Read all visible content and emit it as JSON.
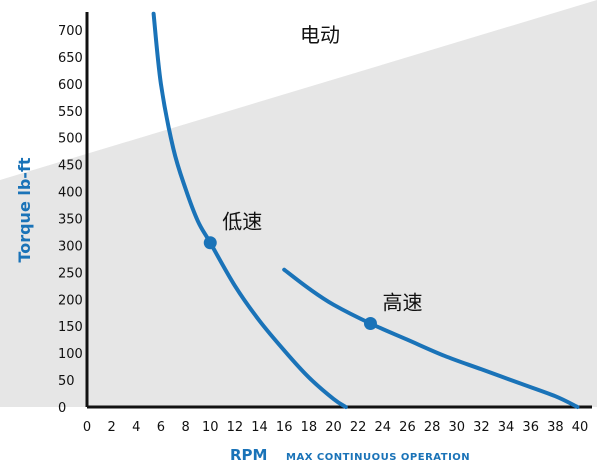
{
  "chart_data": {
    "type": "line",
    "xlabel": "RPM",
    "xlabel_sub": "MAX CONTINUOUS OPERATION",
    "ylabel": "Torque lb-ft",
    "xlim": [
      0,
      40
    ],
    "ylim": [
      0,
      700
    ],
    "x_ticks": [
      0,
      2,
      4,
      6,
      8,
      10,
      12,
      14,
      16,
      18,
      20,
      22,
      24,
      26,
      28,
      30,
      32,
      34,
      36,
      38,
      40
    ],
    "y_ticks": [
      0,
      50,
      100,
      150,
      200,
      250,
      300,
      350,
      400,
      450,
      500,
      550,
      600,
      650,
      700
    ],
    "grid": false,
    "region_label": "电动",
    "series": [
      {
        "name": "低速",
        "x": [
          5.4,
          6,
          7,
          8,
          9,
          10,
          12,
          14,
          16,
          18,
          20,
          21
        ],
        "y": [
          730,
          600,
          480,
          405,
          345,
          305,
          225,
          160,
          105,
          55,
          15,
          0
        ],
        "marker": {
          "x": 10,
          "y": 305
        },
        "color": "#1a73b8"
      },
      {
        "name": "高速",
        "x": [
          16,
          18,
          20,
          23,
          26,
          29,
          32,
          35,
          38,
          39.8
        ],
        "y": [
          255,
          220,
          190,
          155,
          125,
          95,
          70,
          45,
          20,
          0
        ],
        "marker": {
          "x": 23,
          "y": 155
        },
        "color": "#1a73b8"
      }
    ]
  },
  "colors": {
    "axis": "#111111",
    "curve": "#1a73b8",
    "shade": "#e6e6e6"
  }
}
